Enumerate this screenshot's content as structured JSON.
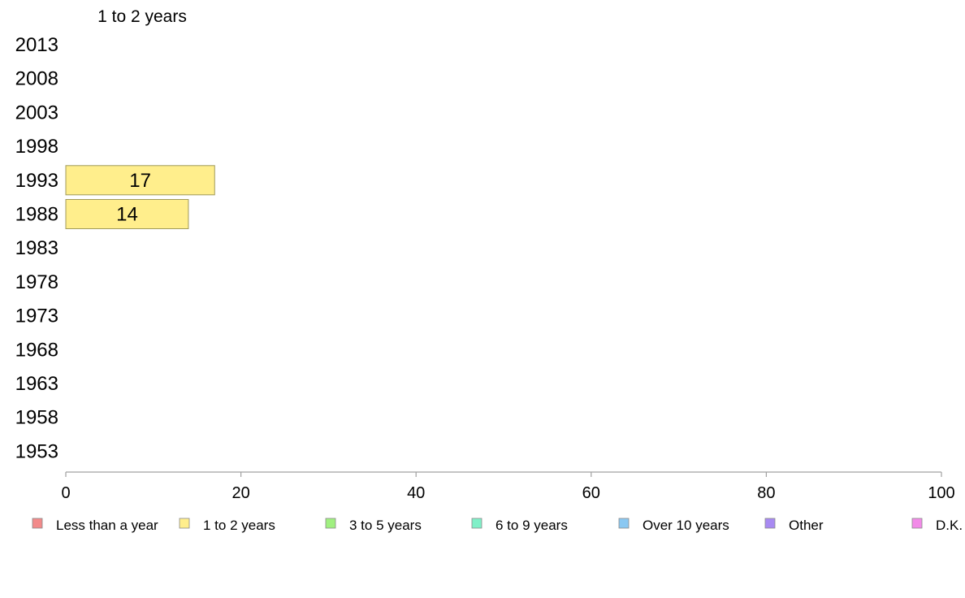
{
  "chart_data": {
    "type": "bar",
    "orientation": "horizontal",
    "title": "1 to 2 years",
    "categories": [
      "2013",
      "2008",
      "2003",
      "1998",
      "1993",
      "1988",
      "1983",
      "1978",
      "1973",
      "1968",
      "1963",
      "1958",
      "1953"
    ],
    "series": [
      {
        "name": "1 to 2 years",
        "values": [
          null,
          null,
          null,
          null,
          17,
          14,
          null,
          null,
          null,
          null,
          null,
          null,
          null
        ]
      }
    ],
    "xlim": [
      0,
      100
    ],
    "xticks": [
      0,
      20,
      40,
      60,
      80,
      100
    ],
    "grid": false,
    "bar_color": "#ffee8c",
    "bar_stroke": "#a09a5a",
    "axis_color": "#a0a0a0",
    "legend_position": "bottom",
    "legend": [
      {
        "label": "Less than a year",
        "color": "#f28a8a"
      },
      {
        "label": "1 to 2 years",
        "color": "#ffee8c"
      },
      {
        "label": "3 to 5 years",
        "color": "#a0f080"
      },
      {
        "label": "6 to 9 years",
        "color": "#80f0c8"
      },
      {
        "label": "Over 10 years",
        "color": "#8ac8f2"
      },
      {
        "label": "Other",
        "color": "#a88af2"
      },
      {
        "label": "D.K.",
        "color": "#f28ae8"
      }
    ]
  }
}
